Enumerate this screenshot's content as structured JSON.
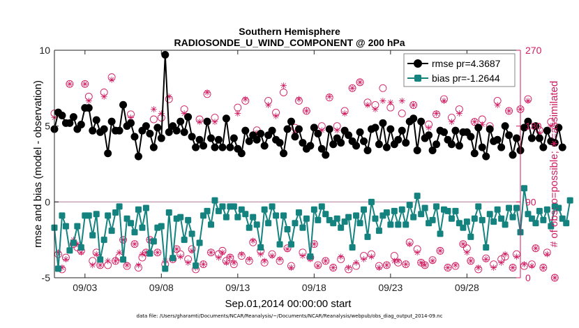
{
  "chart_data": {
    "type": "line",
    "title": "Southern Hemisphere",
    "subtitle": "RADIOSONDE_U_WIND_COMPONENT @ 200 hPa",
    "xlabel": "Sep.01,2014 00:00:00 start",
    "ylabel": "rmse and bias (model - observation)",
    "y2label": "# of obs: o=possible; ∗=assimilated",
    "xlim": [
      1,
      31.5
    ],
    "ylim": [
      -5,
      10
    ],
    "y2lim": [
      0,
      270
    ],
    "x_ticks": [
      3,
      8,
      13,
      18,
      23,
      28
    ],
    "x_tick_labels": [
      "09/03",
      "09/08",
      "09/13",
      "09/18",
      "09/23",
      "09/28"
    ],
    "y_ticks": [
      -5,
      0,
      5,
      10
    ],
    "y_tick_labels": [
      "-5",
      "0",
      "5",
      "10"
    ],
    "y2_ticks": [
      0,
      90,
      180,
      270
    ],
    "y2_tick_labels": [
      "0",
      "90",
      "180",
      "270"
    ],
    "zero_line": 0,
    "time_step_days": 0.25,
    "legend": {
      "position": "top-right",
      "entries": [
        {
          "name": "rmse pr=4.3687",
          "color": "#000000",
          "marker": "circle"
        },
        {
          "name": "bias pr=-1.2644",
          "color": "#14827e",
          "marker": "square"
        }
      ]
    },
    "series": [
      {
        "name": "rmse",
        "axis": "left",
        "color": "#000000",
        "values": [
          4.8,
          5.9,
          5.7,
          5.2,
          5.2,
          5.6,
          4.8,
          5.1,
          6.2,
          6.2,
          4.7,
          5.4,
          4.6,
          4.8,
          3.2,
          5.3,
          4.7,
          4.7,
          6.4,
          5.0,
          5.2,
          4.3,
          3.0,
          4.7,
          5.0,
          4.5,
          3.6,
          4.9,
          4.2,
          9.7,
          4.6,
          5.0,
          4.7,
          5.3,
          4.6,
          5.6,
          4.3,
          3.6,
          4.1,
          3.7,
          5.3,
          4.2,
          3.6,
          4.1,
          3.6,
          5.5,
          3.6,
          4.2,
          3.5,
          3.2,
          4.7,
          4.0,
          4.4,
          4.1,
          4.5,
          3.7,
          4.4,
          4.7,
          4.1,
          3.9,
          3.2,
          4.8,
          5.3,
          4.3,
          4.8,
          3.9,
          3.5,
          3.7,
          4.9,
          4.5,
          3.5,
          3.1,
          4.8,
          3.8,
          4.2,
          3.9,
          4.7,
          4.4,
          4.0,
          3.7,
          4.6,
          4.0,
          3.4,
          4.8,
          4.9,
          3.8,
          5.2,
          3.6,
          4.8,
          3.8,
          4.1,
          4.7,
          3.9,
          5.3,
          5.5,
          3.4,
          5.3,
          4.2,
          4.4,
          3.4,
          3.8,
          4.7,
          4.6,
          4.1,
          3.8,
          4.7,
          3.7,
          4.6,
          4.6,
          4.3,
          3.2,
          4.9,
          3.6,
          3.0,
          4.8,
          4.0,
          4.1,
          3.6,
          5.0,
          4.4,
          3.1,
          4.2,
          3.4,
          4.9,
          5.3,
          4.2,
          5.0,
          4.2,
          3.6,
          4.7,
          4.0,
          3.9,
          4.9,
          3.6
        ]
      },
      {
        "name": "bias",
        "axis": "left",
        "color": "#14827e",
        "values": [
          -1.7,
          -4.4,
          -0.9,
          -1.6,
          -3.2,
          -2.7,
          -1.6,
          -3.0,
          -0.9,
          -0.9,
          -2.2,
          -0.8,
          -3.8,
          -2.5,
          -0.9,
          -1.9,
          -0.7,
          -0.3,
          -3.8,
          -1.1,
          -1.4,
          -2.0,
          -0.5,
          -1.7,
          -0.4,
          -3.4,
          -2.6,
          -1.7,
          -1.6,
          -4.4,
          -0.7,
          -3.7,
          -1.1,
          -1.0,
          -2.5,
          -1.2,
          -2.1,
          -4.2,
          -2.7,
          -0.9,
          -0.6,
          -1.5,
          0.1,
          -0.6,
          -0.3,
          -1.0,
          -0.3,
          -0.3,
          -1.0,
          -0.5,
          -0.8,
          -1.7,
          -1.0,
          -1.5,
          -3.0,
          -0.5,
          -1.4,
          -0.3,
          -0.9,
          -2.8,
          -0.9,
          -1.8,
          -2.8,
          -1.4,
          -0.7,
          -1.7,
          -1.1,
          -3.6,
          -0.5,
          -1.2,
          -0.3,
          -0.8,
          -1.2,
          -1.4,
          -1.1,
          -1.7,
          -1.3,
          -1.0,
          -3.0,
          -0.9,
          -1.4,
          -0.5,
          -2.3,
          0.0,
          -1.1,
          -1.9,
          -0.9,
          -0.7,
          -1.5,
          -0.6,
          -1.5,
          -0.5,
          -1.5,
          -0.2,
          -1.0,
          0.4,
          -0.8,
          -0.4,
          -1.4,
          -1.2,
          -0.3,
          -2.1,
          -0.5,
          -0.6,
          -1.1,
          -0.6,
          -1.4,
          -1.7,
          -1.3,
          -2.3,
          -1.1,
          -0.3,
          -1.2,
          -3.0,
          -0.8,
          -1.3,
          -0.5,
          -1.1,
          -1.5,
          -0.4,
          -1.0,
          -0.4,
          -2.0,
          0.9,
          -0.8,
          -1.1,
          -1.4,
          -0.6,
          -1.2,
          -0.5,
          -1.6,
          -0.3,
          -0.4,
          -1.1,
          -1.4,
          0.1
        ]
      },
      {
        "name": "possible obs",
        "axis": "right",
        "marker": "o",
        "color": "#d01c61",
        "values": [
          195,
          28,
          10,
          24,
          230,
          40,
          36,
          32,
          230,
          215,
          20,
          30,
          15,
          220,
          15,
          238,
          20,
          25,
          45,
          14,
          194,
          40,
          12,
          24,
          30,
          45,
          188,
          30,
          190,
          16,
          212,
          22,
          34,
          28,
          200,
          22,
          34,
          10,
          188,
          16,
          218,
          30,
          190,
          28,
          32,
          20,
          24,
          16,
          202,
          26,
          210,
          20,
          42,
          175,
          32,
          18,
          210,
          28,
          196,
          20,
          220,
          35,
          14,
          178,
          210,
          30,
          198,
          24,
          40,
          15,
          180,
          20,
          214,
          12,
          180,
          22,
          198,
          10,
          225,
          14,
          232,
          26,
          208,
          28,
          205,
          14,
          225,
          15,
          202,
          26,
          18,
          195,
          16,
          42,
          205,
          34,
          18,
          15,
          182,
          21,
          194,
          32,
          212,
          12,
          190,
          14,
          200,
          40,
          35,
          20,
          185,
          10,
          188,
          23,
          180,
          16,
          210,
          22,
          25,
          198,
          12,
          28,
          200,
          14,
          212,
          16,
          35,
          175,
          12,
          30,
          185,
          0
        ]
      },
      {
        "name": "assimilated obs",
        "axis": "right",
        "marker": "*",
        "color": "#d01c61",
        "values": [
          190,
          30,
          12,
          22,
          230,
          45,
          40,
          30,
          230,
          210,
          15,
          28,
          15,
          215,
          20,
          235,
          20,
          30,
          45,
          15,
          190,
          40,
          15,
          28,
          30,
          45,
          200,
          30,
          195,
          20,
          215,
          22,
          34,
          25,
          195,
          18,
          32,
          12,
          185,
          16,
          220,
          30,
          185,
          24,
          30,
          18,
          25,
          18,
          195,
          28,
          212,
          22,
          44,
          172,
          28,
          20,
          205,
          26,
          192,
          22,
          228,
          34,
          12,
          172,
          212,
          26,
          198,
          22,
          40,
          14,
          175,
          20,
          215,
          12,
          175,
          25,
          195,
          12,
          225,
          18,
          232,
          22,
          205,
          25,
          200,
          12,
          210,
          15,
          208,
          20,
          20,
          210,
          16,
          40,
          205,
          30,
          18,
          15,
          178,
          20,
          195,
          32,
          210,
          12,
          185,
          15,
          195,
          40,
          30,
          20,
          185,
          12,
          182,
          22,
          178,
          12,
          205,
          18,
          28,
          198,
          12,
          25,
          200,
          16,
          210,
          14,
          35,
          172,
          12,
          28,
          180,
          0
        ]
      }
    ]
  },
  "footer": {
    "data_file": "data file: /Users/gharamti/Documents/NCAR/Reanalysis/~/Documents/NCAR/Reanalysis/webpub/obs_diag_output_2014-09.nc"
  }
}
